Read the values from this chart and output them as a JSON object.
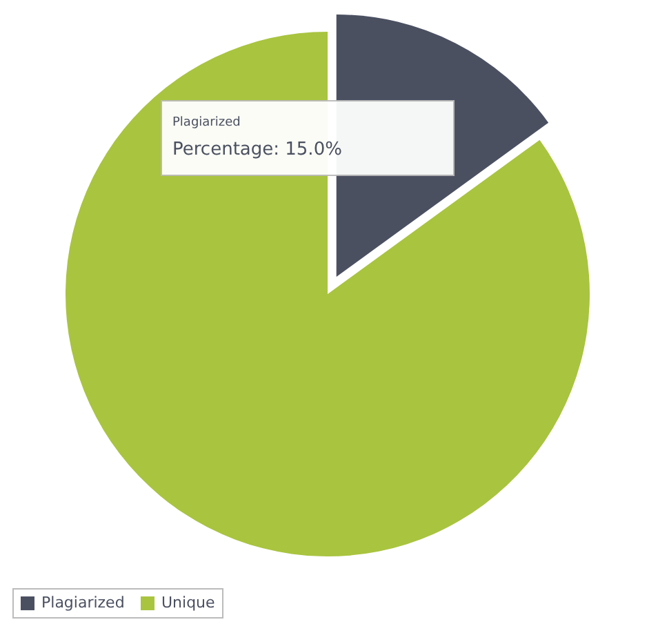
{
  "chart_data": {
    "type": "pie",
    "categories": [
      "Plagiarized",
      "Unique"
    ],
    "values": [
      15,
      85
    ],
    "colors": [
      "#4b5061",
      "#a9c43f"
    ],
    "annotations": [
      "Plagiarized",
      "Percentage: 15.0%"
    ],
    "legend": "bottom"
  }
}
